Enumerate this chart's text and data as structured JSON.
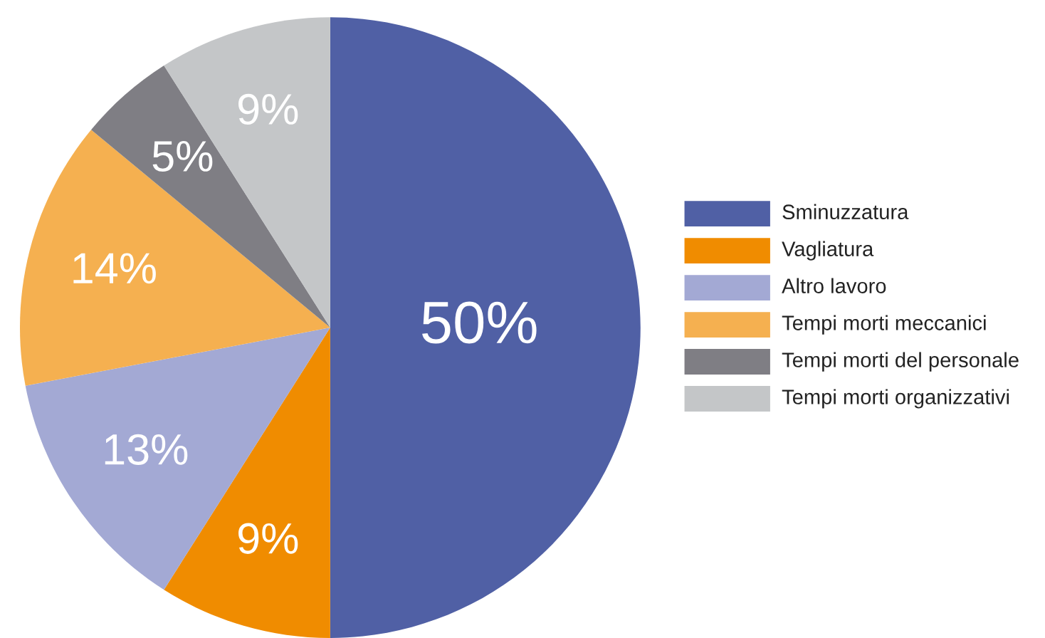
{
  "chart_data": {
    "type": "pie",
    "categories": [
      "Sminuzzatura",
      "Vagliatura",
      "Altro lavoro",
      "Tempi morti meccanici",
      "Tempi morti del personale",
      "Tempi morti organizzativi"
    ],
    "values": [
      50,
      9,
      13,
      14,
      5,
      9
    ],
    "colors": [
      "#5060a5",
      "#f08c00",
      "#a3a9d4",
      "#f5b050",
      "#7f7e84",
      "#c4c6c8"
    ],
    "value_labels": [
      "50%",
      "9%",
      "13%",
      "14%",
      "5%",
      "9%"
    ],
    "legend": "right"
  }
}
